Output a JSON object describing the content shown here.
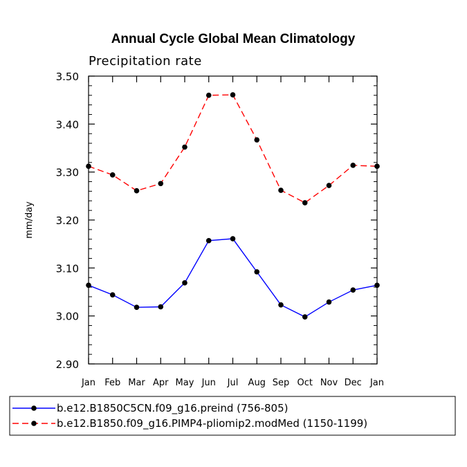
{
  "chart_data": {
    "type": "line",
    "title": "Annual Cycle Global Mean Climatology",
    "subtitle": "Precipitation rate",
    "xlabel": "",
    "ylabel": "mm/day",
    "ylim": [
      2.9,
      3.5
    ],
    "yticks": [
      "2.90",
      "3.00",
      "3.10",
      "3.20",
      "3.30",
      "3.40",
      "3.50"
    ],
    "categories": [
      "Jan",
      "Feb",
      "Mar",
      "Apr",
      "May",
      "Jun",
      "Jul",
      "Aug",
      "Sep",
      "Oct",
      "Nov",
      "Dec",
      "Jan"
    ],
    "series": [
      {
        "name": "b.e12.B1850C5CN.f09_g16.preind (756-805)",
        "color": "#0000ff",
        "dash": "solid",
        "values": [
          3.064,
          3.044,
          3.018,
          3.019,
          3.069,
          3.157,
          3.161,
          3.092,
          3.023,
          2.998,
          3.029,
          3.054,
          3.064
        ]
      },
      {
        "name": "b.e12.B1850.f09_g16.PIMP4-pliomip2.modMed (1150-1199)",
        "color": "#ff0000",
        "dash": "dashed",
        "values": [
          3.312,
          3.294,
          3.261,
          3.276,
          3.352,
          3.46,
          3.461,
          3.367,
          3.262,
          3.236,
          3.272,
          3.314,
          3.312
        ]
      }
    ],
    "legend_position": "bottom"
  }
}
